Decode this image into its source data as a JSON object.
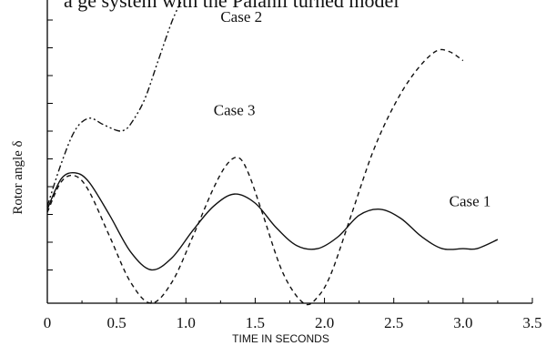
{
  "header_text": "a ge system with the Palanii turned model",
  "chart_data": {
    "type": "line",
    "title": "",
    "xlabel": "TIME IN SECONDS",
    "ylabel": "Rotor angle δ",
    "xlim": [
      0,
      3.5
    ],
    "ylim": [
      0,
      10
    ],
    "x_ticks": [
      "0",
      "0.5",
      "1.0",
      "1.5",
      "2.0",
      "2.5",
      "3.0",
      "3.5"
    ],
    "y_tick_labels_shown": false,
    "grid": false,
    "series": [
      {
        "name": "Case 1",
        "style": "solid",
        "x": [
          0,
          0.1,
          0.2,
          0.3,
          0.45,
          0.6,
          0.75,
          0.9,
          1.05,
          1.2,
          1.35,
          1.5,
          1.65,
          1.8,
          1.95,
          2.1,
          2.25,
          2.4,
          2.55,
          2.7,
          2.85,
          3.0,
          3.1,
          3.25
        ],
        "values": [
          3.1,
          4.1,
          4.3,
          4.0,
          2.9,
          1.7,
          1.1,
          1.5,
          2.4,
          3.2,
          3.6,
          3.3,
          2.5,
          1.9,
          1.8,
          2.2,
          2.9,
          3.1,
          2.8,
          2.2,
          1.8,
          1.8,
          1.8,
          2.1
        ]
      },
      {
        "name": "Case 2",
        "style": "dash-dot",
        "x": [
          0,
          0.1,
          0.2,
          0.3,
          0.4,
          0.5,
          0.55,
          0.6,
          0.7,
          0.8,
          0.9,
          0.97
        ],
        "values": [
          3.2,
          4.6,
          5.7,
          6.1,
          5.9,
          5.7,
          5.7,
          5.9,
          6.7,
          8.0,
          9.3,
          10.0
        ]
      },
      {
        "name": "Case 3",
        "style": "dashed",
        "x": [
          0,
          0.1,
          0.2,
          0.3,
          0.45,
          0.6,
          0.75,
          0.9,
          1.05,
          1.2,
          1.3,
          1.38,
          1.45,
          1.55,
          1.7,
          1.85,
          1.95,
          2.05,
          2.2,
          2.35,
          2.5,
          2.65,
          2.8,
          2.9,
          3.0
        ],
        "values": [
          3.0,
          4.0,
          4.2,
          3.7,
          2.2,
          0.7,
          0.0,
          0.7,
          2.2,
          3.8,
          4.6,
          4.8,
          4.3,
          3.0,
          1.0,
          0.0,
          0.2,
          1.0,
          3.0,
          5.0,
          6.5,
          7.6,
          8.3,
          8.3,
          8.0
        ]
      }
    ],
    "annotations": [
      {
        "text": "Case 2",
        "x": 1.25,
        "y": 10.2
      },
      {
        "text": "Case 3",
        "x": 1.2,
        "y": 6.2
      },
      {
        "text": "Case 1",
        "x": 2.9,
        "y": 3.2
      }
    ]
  }
}
